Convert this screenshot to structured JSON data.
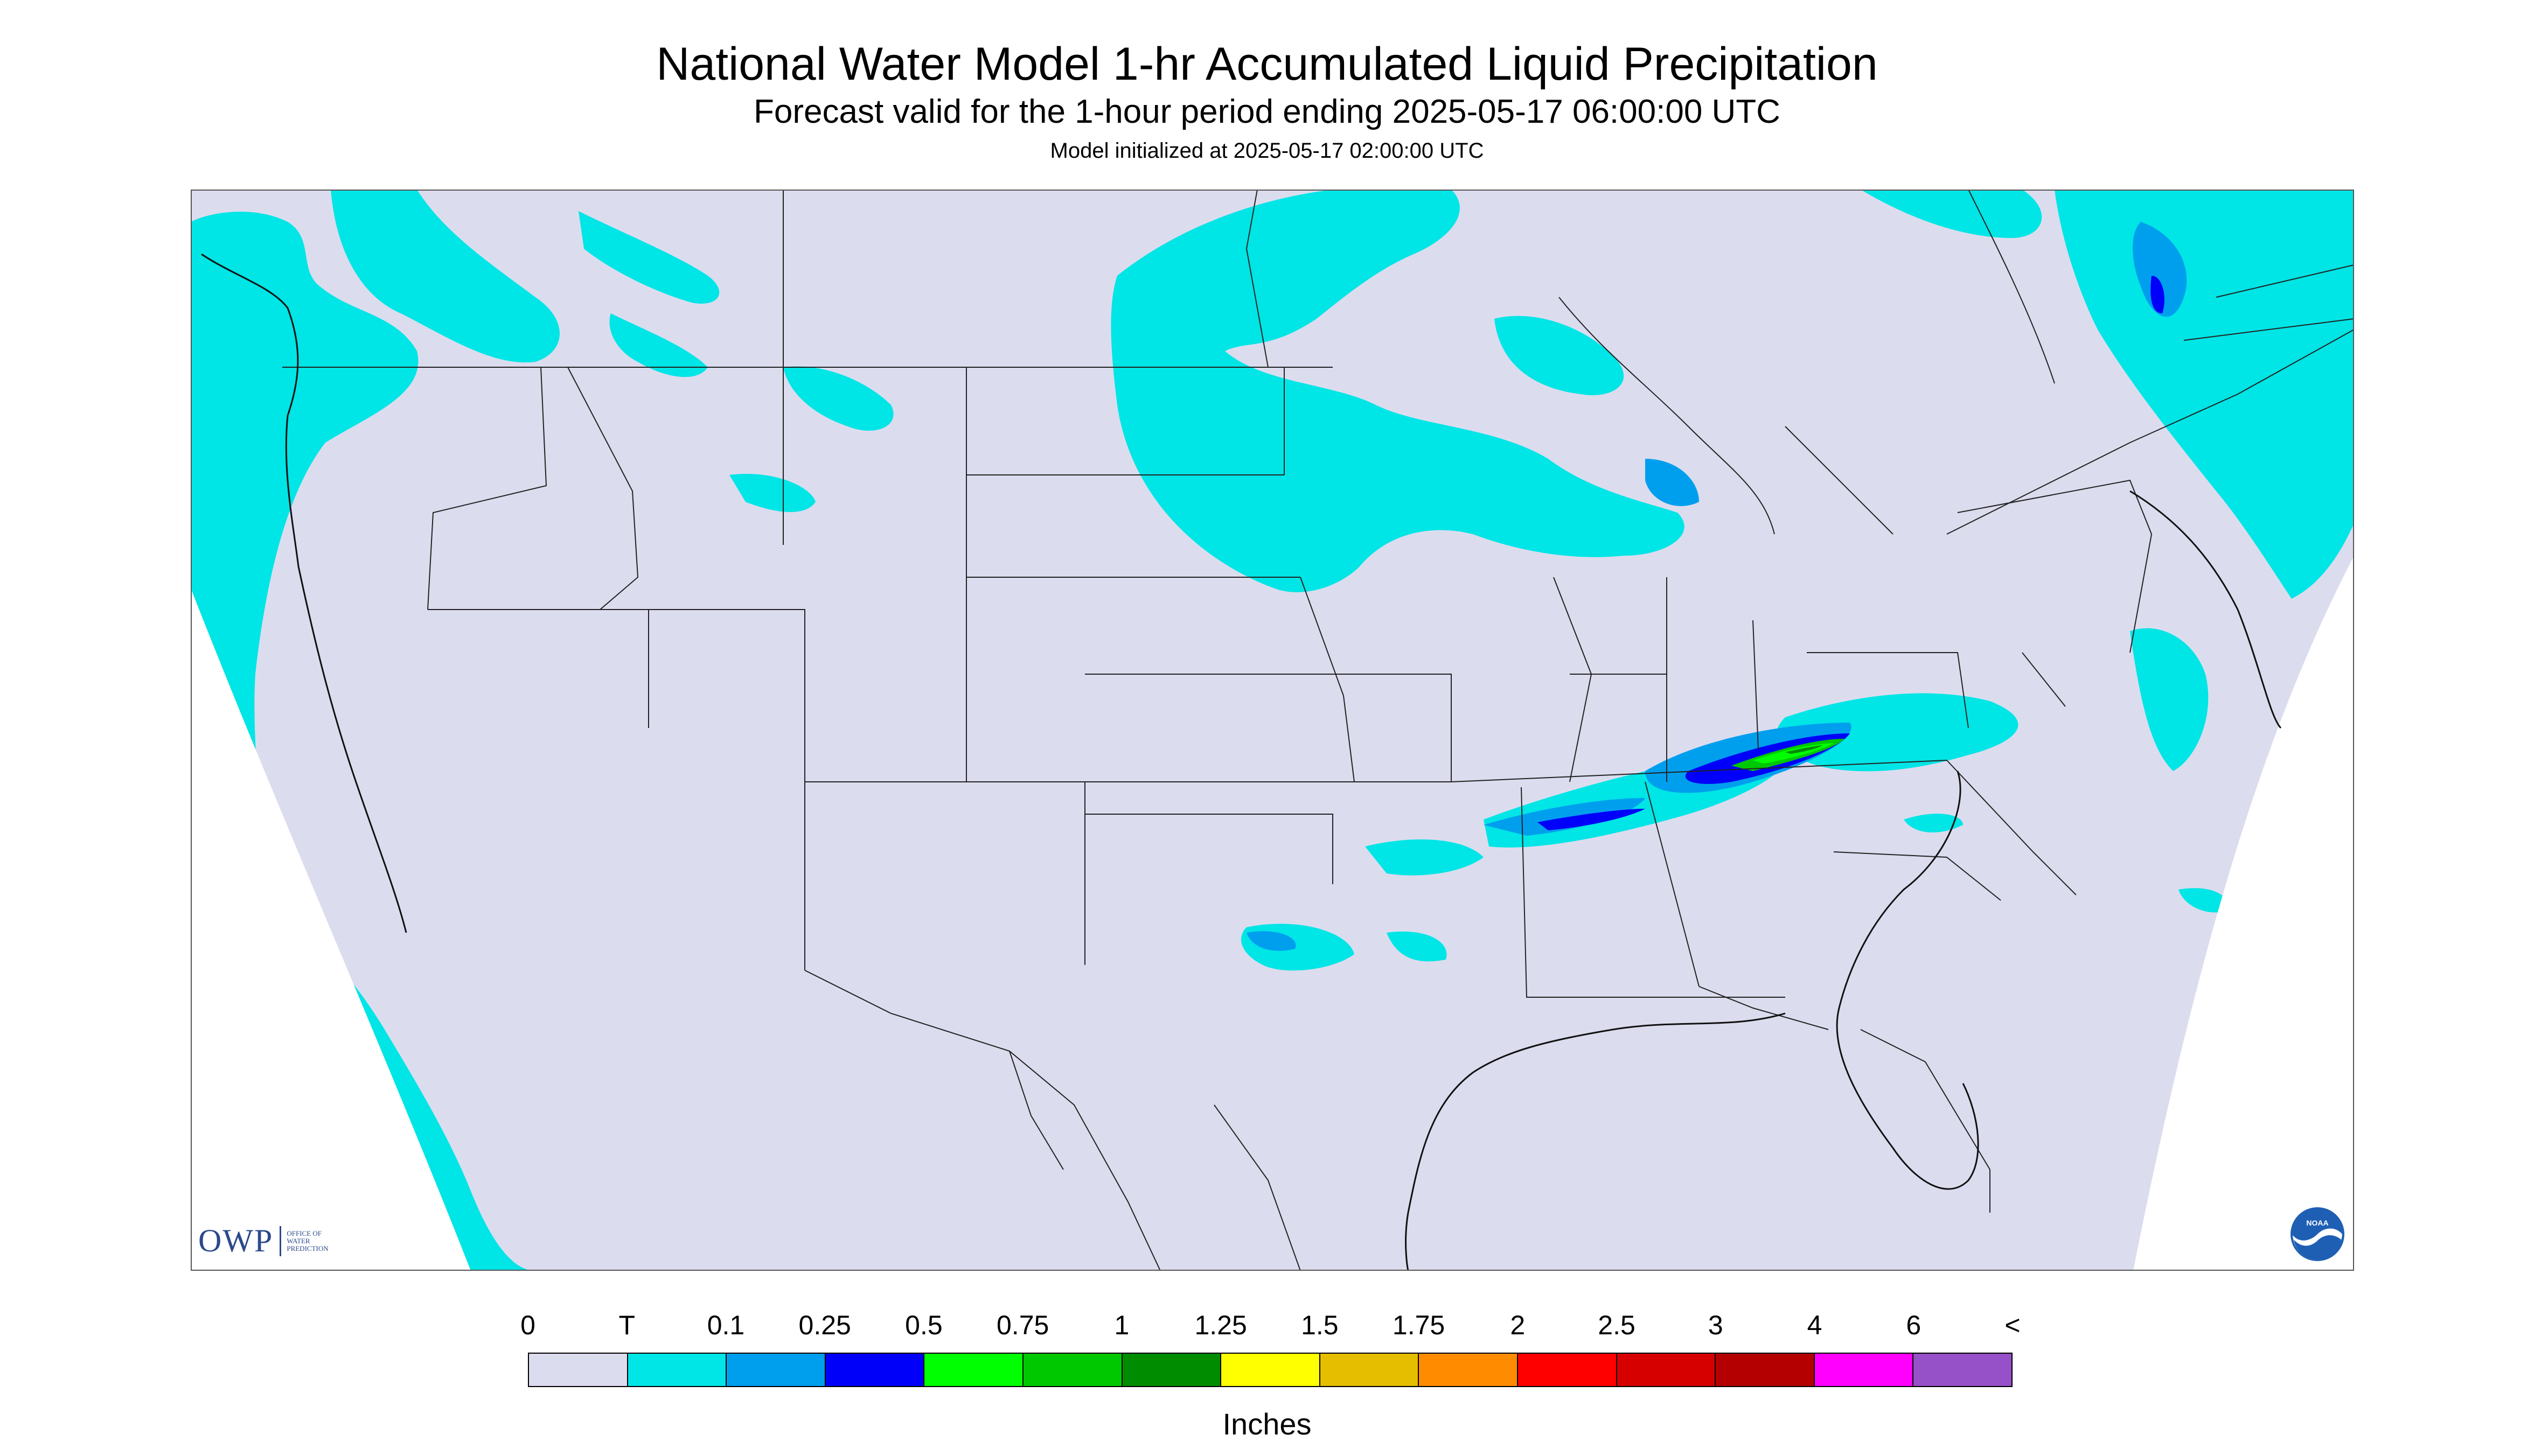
{
  "header": {
    "title": "National Water Model 1-hr Accumulated Liquid Precipitation",
    "subtitle": "Forecast valid for the 1-hour period ending 2025-05-17 06:00:00 UTC",
    "init": "Model initialized at 2025-05-17 02:00:00 UTC"
  },
  "map": {
    "background_color": "#dcdcef",
    "border_color": "#000000",
    "boundary_color": "#222222"
  },
  "logos": {
    "owp_mark": "OWP",
    "owp_text_line1": "OFFICE OF",
    "owp_text_line2": "WATER",
    "owp_text_line3": "PREDICTION",
    "noaa_label": "NOAA"
  },
  "legend": {
    "ticks": [
      "0",
      "T",
      "0.1",
      "0.25",
      "0.5",
      "0.75",
      "1",
      "1.25",
      "1.5",
      "1.75",
      "2",
      "2.5",
      "3",
      "4",
      "6",
      "<"
    ],
    "colors": [
      "#dcdcef",
      "#00e5e5",
      "#009fee",
      "#0000fa",
      "#00ff00",
      "#00c800",
      "#008c00",
      "#ffff00",
      "#e6be00",
      "#ff8c00",
      "#ff0000",
      "#d70000",
      "#b40000",
      "#ff00ff",
      "#9650c8"
    ],
    "units": "Inches"
  },
  "precip_colors": {
    "trace": "#00e5e5",
    "light": "#009fee",
    "moderate": "#0000fa",
    "heavy": "#00ff00",
    "heavier": "#00c800",
    "heaviest": "#008c00"
  }
}
